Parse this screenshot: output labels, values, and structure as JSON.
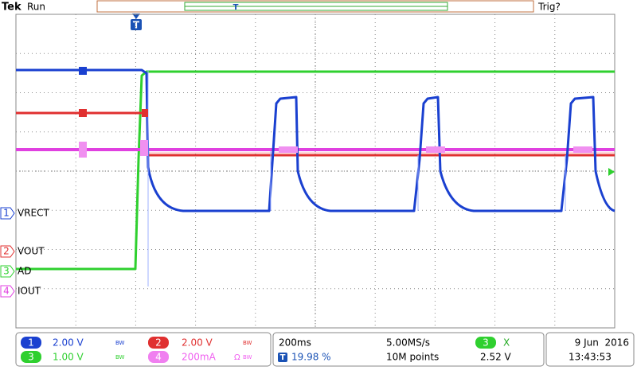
{
  "header": {
    "brand": "Tek",
    "status": "Run",
    "trigger_status": "Trig?",
    "trigger_marker": "T"
  },
  "channels": [
    {
      "number": "1",
      "label": "VRECT"
    },
    {
      "number": "2",
      "label": "VOUT"
    },
    {
      "number": "3",
      "label": "AD"
    },
    {
      "number": "4",
      "label": "IOUT"
    }
  ],
  "settings": {
    "ch1_scale": "2.00 V",
    "ch2_scale": "2.00 V",
    "ch3_scale": "1.00 V",
    "ch4_scale": "200mA",
    "bandwidth_mark": "BW",
    "ch4_mark": "Ω",
    "timebase": "200ms",
    "sample_rate": "5.00MS/s",
    "trigger_position": "19.98 %",
    "record_length": "10M points",
    "trigger_source": "3",
    "trigger_level": "2.52 V",
    "trigger_slope": "X"
  },
  "clock": {
    "date": "9 Jun  2016",
    "time": "13:43:53"
  }
}
